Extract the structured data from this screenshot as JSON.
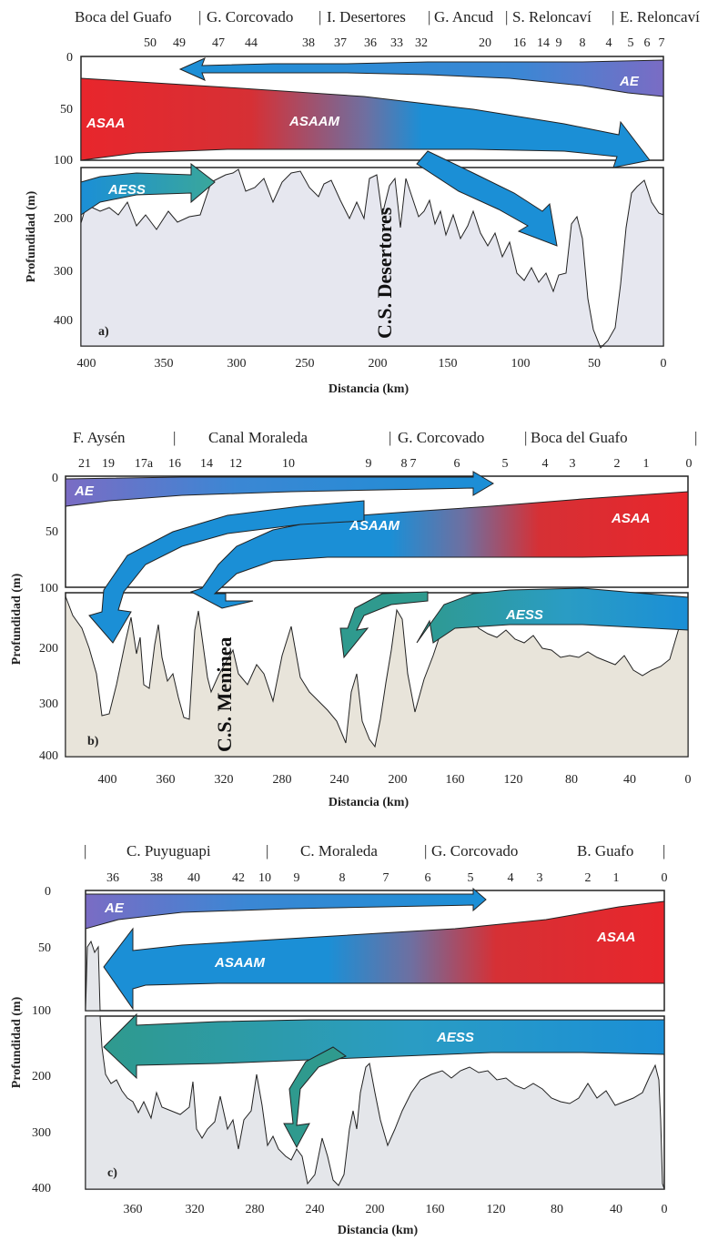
{
  "panels": [
    {
      "id": "a",
      "label": "a)",
      "regions": [
        "Boca del Guafo",
        "G. Corcovado",
        "I. Desertores",
        "G. Ancud",
        "S. Reloncaví",
        "E. Reloncaví"
      ],
      "stations": [
        "50",
        "49",
        "47",
        "44",
        "38",
        "37",
        "36",
        "33",
        "32",
        "20",
        "16",
        "14",
        "9",
        "8",
        "4",
        "5",
        "6",
        "7"
      ],
      "sill": "C.S. Desertores",
      "water_masses": [
        "AE",
        "ASAA",
        "ASAAM",
        "AESS"
      ],
      "x_ticks": [
        "400",
        "350",
        "300",
        "250",
        "200",
        "150",
        "100",
        "50",
        "0"
      ],
      "y_ticks": [
        "0",
        "50",
        "100",
        "200",
        "300",
        "400"
      ],
      "xlabel": "Distancia (km)",
      "ylabel": "Profundidad (m)"
    },
    {
      "id": "b",
      "label": "b)",
      "regions": [
        "F. Aysén",
        "Canal Moraleda",
        "G. Corcovado",
        "Boca del Guafo"
      ],
      "stations": [
        "21",
        "19",
        "17a",
        "16",
        "14",
        "12",
        "10",
        "9",
        "8",
        "7",
        "6",
        "5",
        "4",
        "3",
        "2",
        "1",
        "0"
      ],
      "sill": "C.S. Meninea",
      "water_masses": [
        "AE",
        "ASAAM",
        "ASAA",
        "AESS"
      ],
      "x_ticks": [
        "400",
        "360",
        "320",
        "280",
        "240",
        "200",
        "160",
        "120",
        "80",
        "40",
        "0"
      ],
      "y_ticks": [
        "0",
        "50",
        "100",
        "200",
        "300",
        "400"
      ],
      "xlabel": "Distancia (km)",
      "ylabel": "Profundidad (m)"
    },
    {
      "id": "c",
      "label": "c)",
      "regions": [
        "C. Puyuguapi",
        "C. Moraleda",
        "G. Corcovado",
        "B. Guafo"
      ],
      "stations": [
        "36",
        "38",
        "40",
        "42",
        "10",
        "9",
        "8",
        "7",
        "6",
        "5",
        "4",
        "3",
        "2",
        "1",
        "0"
      ],
      "water_masses": [
        "AE",
        "ASAA",
        "ASAAM",
        "AESS"
      ],
      "x_ticks": [
        "360",
        "320",
        "280",
        "240",
        "200",
        "160",
        "120",
        "80",
        "40",
        "0"
      ],
      "y_ticks": [
        "0",
        "50",
        "100",
        "200",
        "300",
        "400"
      ],
      "xlabel": "Distancia (km)",
      "ylabel": "Profundidad (m)"
    }
  ],
  "colors": {
    "ae": "#7a6cc4",
    "asaa": "#e8262c",
    "blue": "#1b8fd6",
    "aess": "#3aa79b",
    "bottom_a": "#e6e7ef",
    "bottom_b": "#e8e4da",
    "bottom_c": "#e4e6ea"
  }
}
